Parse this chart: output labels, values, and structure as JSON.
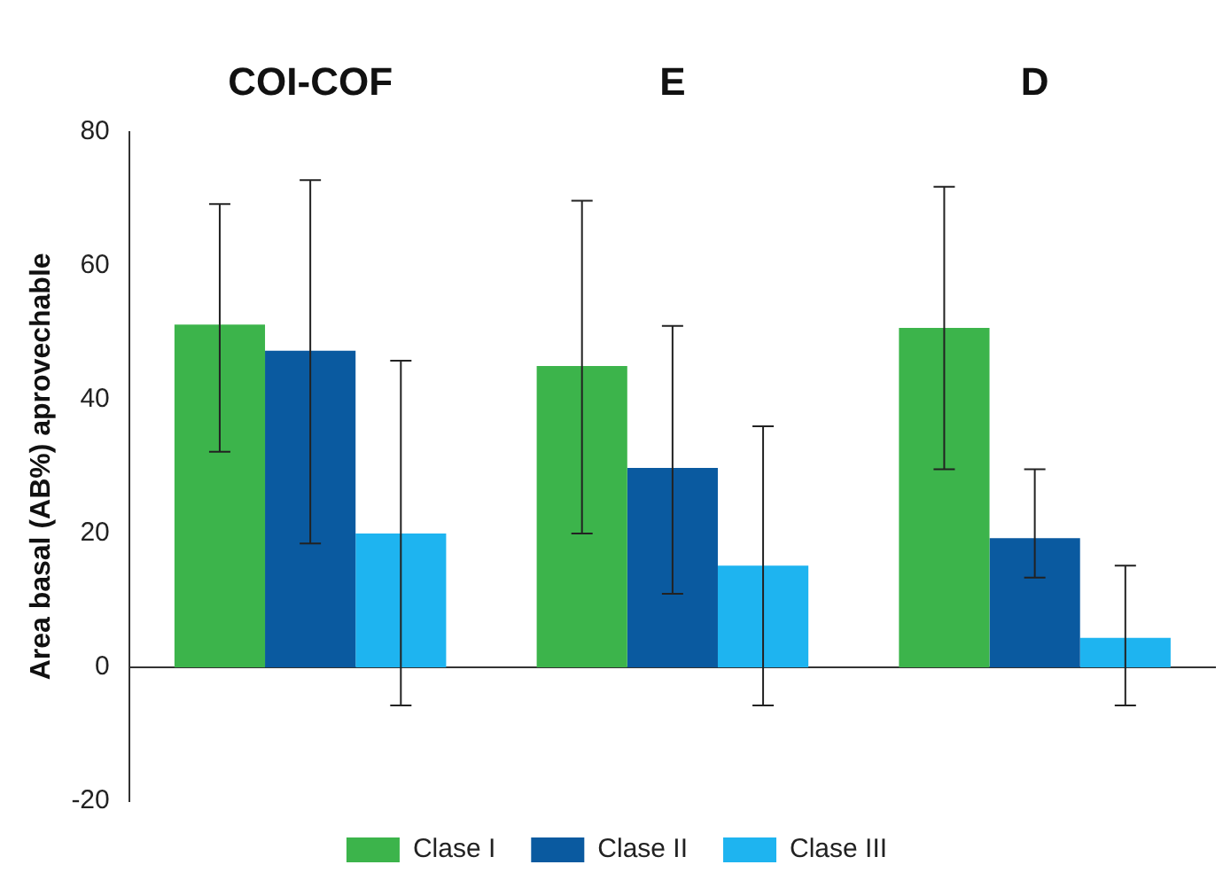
{
  "chart_data": {
    "type": "bar",
    "ylabel": "Area basal (AB%) aprovechable",
    "categories": [
      "COI-COF",
      "E",
      "D"
    ],
    "series": [
      {
        "name": "Clase I",
        "color": "#3cb44b",
        "values": [
          51.2,
          45,
          50.7
        ],
        "errors": [
          [
            32.2,
            69.2
          ],
          [
            20,
            69.7
          ],
          [
            29.6,
            71.8
          ]
        ]
      },
      {
        "name": "Clase II",
        "color": "#0a5aa0",
        "values": [
          47.3,
          29.8,
          19.3
        ],
        "errors": [
          [
            18.5,
            72.8
          ],
          [
            11,
            51
          ],
          [
            13.4,
            29.6
          ]
        ]
      },
      {
        "name": "Clase III",
        "color": "#1eb4f0",
        "values": [
          20,
          15.2,
          4.4
        ],
        "errors": [
          [
            -5.7,
            45.8
          ],
          [
            -5.7,
            36
          ],
          [
            -5.7,
            15.2
          ]
        ]
      }
    ],
    "ylim": [
      -20,
      80
    ],
    "yticks": [
      -20,
      0,
      20,
      40,
      60,
      80
    ],
    "grid": false,
    "legend": "bottom",
    "ref_lines": [
      {
        "axis": "y",
        "value": 0,
        "color": "#333333"
      }
    ]
  }
}
